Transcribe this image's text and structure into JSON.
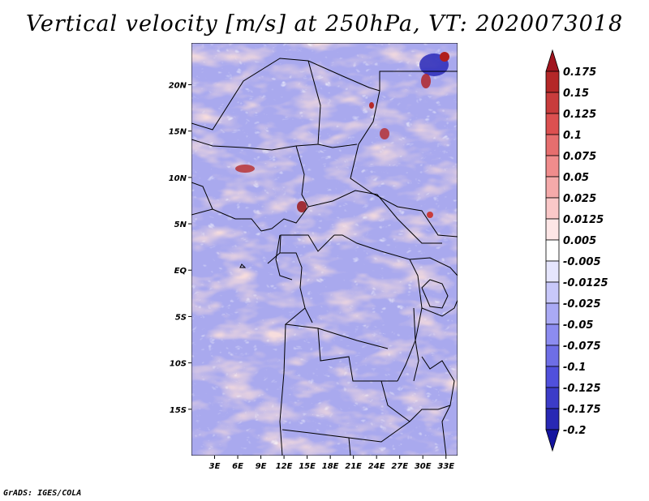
{
  "title": "Vertical velocity [m/s] at 250hPa, VT: 2020073018",
  "credit": "GrADS: IGES/COLA",
  "map": {
    "lon_range": [
      0,
      34.5
    ],
    "lat_range": [
      -20,
      24.5
    ],
    "lat_ticks": [
      {
        "label": "20N",
        "value": 20
      },
      {
        "label": "15N",
        "value": 15
      },
      {
        "label": "10N",
        "value": 10
      },
      {
        "label": "5N",
        "value": 5
      },
      {
        "label": "EQ",
        "value": 0
      },
      {
        "label": "5S",
        "value": -5
      },
      {
        "label": "10S",
        "value": -10
      },
      {
        "label": "15S",
        "value": -15
      }
    ],
    "lon_ticks": [
      {
        "label": "3E",
        "value": 3
      },
      {
        "label": "6E",
        "value": 6
      },
      {
        "label": "9E",
        "value": 9
      },
      {
        "label": "12E",
        "value": 12
      },
      {
        "label": "15E",
        "value": 15
      },
      {
        "label": "18E",
        "value": 18
      },
      {
        "label": "21E",
        "value": 21
      },
      {
        "label": "24E",
        "value": 24
      },
      {
        "label": "27E",
        "value": 27
      },
      {
        "label": "30E",
        "value": 30
      },
      {
        "label": "33E",
        "value": 33
      }
    ]
  },
  "colorbar": {
    "labels": [
      "0.175",
      "0.15",
      "0.125",
      "0.1",
      "0.075",
      "0.05",
      "0.025",
      "0.0125",
      "0.005",
      "-0.005",
      "-0.0125",
      "-0.025",
      "-0.05",
      "-0.075",
      "-0.1",
      "-0.125",
      "-0.175",
      "-0.2"
    ],
    "colors": [
      "#a0141e",
      "#b42828",
      "#c83c3c",
      "#dc5050",
      "#e66e6e",
      "#f08c8c",
      "#f5aaaa",
      "#fac8c8",
      "#fde6e6",
      "#ffffff",
      "#e6e6fd",
      "#c8c8fa",
      "#aaaaf5",
      "#8c8cf0",
      "#6e6ee6",
      "#5050dc",
      "#3c3cc8",
      "#2828b4",
      "#14149f"
    ]
  }
}
